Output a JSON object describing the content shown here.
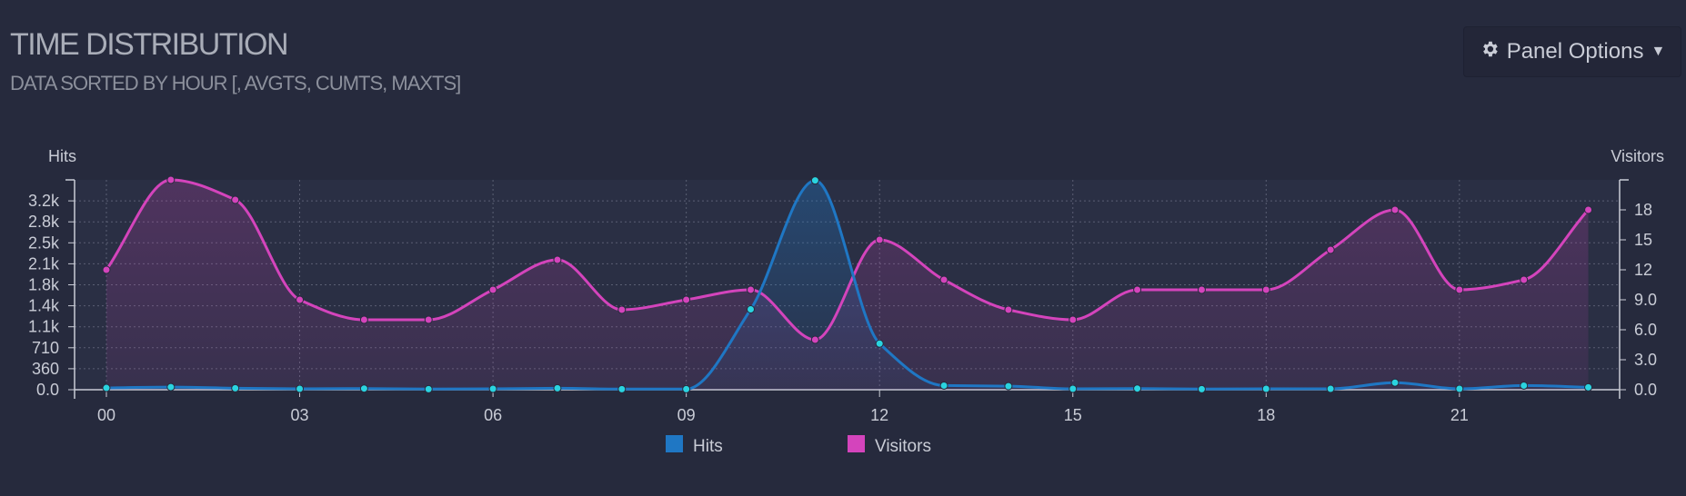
{
  "header": {
    "title": "TIME DISTRIBUTION",
    "subtitle": "DATA SORTED BY HOUR [, AVGTS, CUMTS, MAXTS]",
    "panel_options_label": "Panel Options",
    "panel_options_icon": "gear-icon"
  },
  "chart_data": {
    "type": "line",
    "x": [
      "00",
      "01",
      "02",
      "03",
      "04",
      "05",
      "06",
      "07",
      "08",
      "09",
      "10",
      "11",
      "12",
      "13",
      "14",
      "15",
      "16",
      "17",
      "18",
      "19",
      "20",
      "21",
      "22",
      "23"
    ],
    "x_tick_labels": [
      "00",
      "03",
      "06",
      "09",
      "12",
      "15",
      "18",
      "21"
    ],
    "ylabel_left": "Hits",
    "ylabel_right": "Visitors",
    "y_left_ticks": [
      "0.0",
      "360",
      "710",
      "1.1k",
      "1.4k",
      "1.8k",
      "2.1k",
      "2.5k",
      "2.8k",
      "3.2k"
    ],
    "y_right_ticks": [
      "0.0",
      "3.0",
      "6.0",
      "9.0",
      "12",
      "15",
      "18"
    ],
    "ylim_left": [
      0,
      3550
    ],
    "ylim_right": [
      0,
      21
    ],
    "grid": true,
    "legend_position": "bottom-center",
    "series": [
      {
        "name": "Hits",
        "axis": "left",
        "color": "#1f77c4",
        "point_color": "#2ad4e0",
        "values": [
          30,
          45,
          25,
          15,
          20,
          10,
          15,
          25,
          10,
          10,
          1360,
          3540,
          780,
          70,
          60,
          15,
          20,
          10,
          15,
          15,
          120,
          15,
          70,
          40
        ]
      },
      {
        "name": "Visitors",
        "axis": "right",
        "color": "#d444bc",
        "point_color": "#d444bc",
        "values": [
          12,
          21,
          19,
          9,
          7,
          7,
          10,
          13,
          8,
          9,
          10,
          5,
          15,
          11,
          8,
          7,
          10,
          10,
          10,
          14,
          18,
          10,
          11,
          18
        ]
      }
    ]
  }
}
